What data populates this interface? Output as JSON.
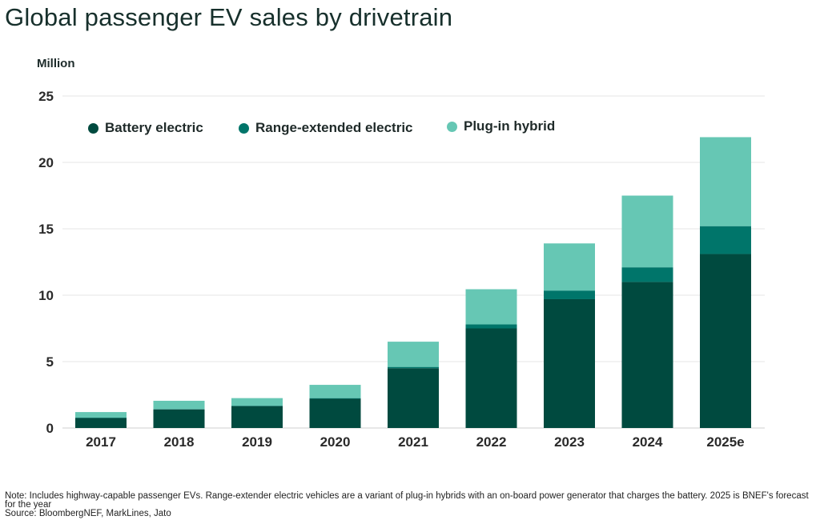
{
  "title": "Global passenger EV sales by drivetrain",
  "note": "Note: Includes highway-capable passenger EVs. Range-extender electric vehicles are a variant of plug-in hybrids with an on-board power generator that charges the battery. 2025 is BNEF's forecast for the year",
  "source": "Source: BloombergNEF, MarkLines, Jato",
  "chart_data": {
    "type": "bar",
    "stacked": true,
    "title": "Global passenger EV sales by drivetrain",
    "ylabel": "Million",
    "ylim": [
      0,
      25
    ],
    "yticks": [
      0,
      5,
      10,
      15,
      20,
      25
    ],
    "grid": true,
    "legend_position": "top-left",
    "categories": [
      "2017",
      "2018",
      "2019",
      "2020",
      "2021",
      "2022",
      "2023",
      "2024",
      "2025e"
    ],
    "series": [
      {
        "name": "Battery electric",
        "color": "#004a3f",
        "values": [
          0.75,
          1.4,
          1.65,
          2.2,
          4.5,
          7.5,
          9.7,
          11.0,
          13.1
        ]
      },
      {
        "name": "Range-extended electric",
        "color": "#00756a",
        "values": [
          0.03,
          0.03,
          0.03,
          0.05,
          0.1,
          0.3,
          0.65,
          1.1,
          2.1
        ]
      },
      {
        "name": "Plug-in hybrid",
        "color": "#66c7b4",
        "values": [
          0.42,
          0.62,
          0.57,
          1.0,
          1.9,
          2.65,
          3.55,
          5.4,
          6.7
        ]
      }
    ]
  }
}
